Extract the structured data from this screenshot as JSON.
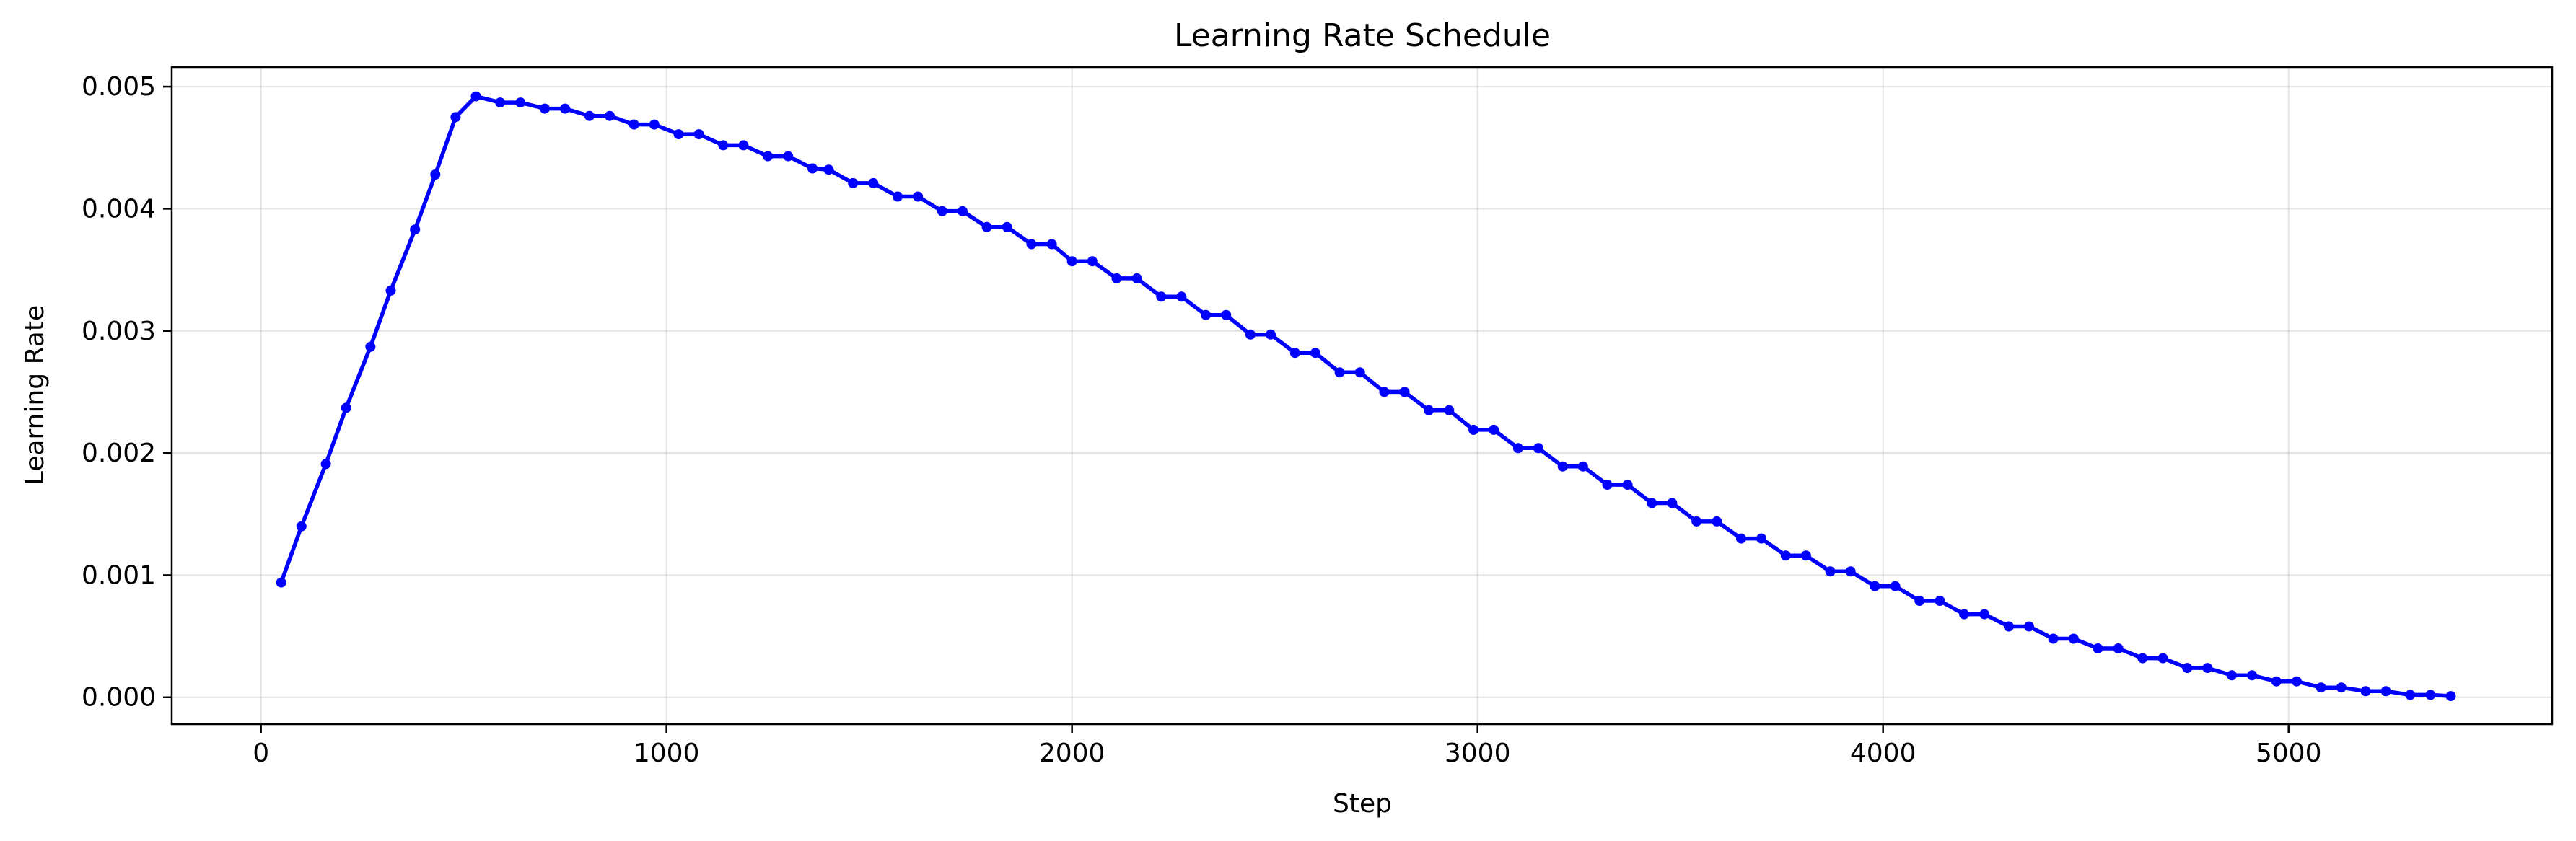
{
  "chart_data": {
    "type": "line",
    "title": "Learning Rate Schedule",
    "xlabel": "Step",
    "ylabel": "Learning Rate",
    "xlim": [
      -220,
      5650
    ],
    "ylim": [
      -0.00022,
      0.00516
    ],
    "xticks": [
      0,
      1000,
      2000,
      3000,
      4000,
      5000
    ],
    "xtick_labels": [
      "0",
      "1000",
      "2000",
      "3000",
      "4000",
      "5000"
    ],
    "yticks": [
      0,
      0.001,
      0.002,
      0.003,
      0.004,
      0.005
    ],
    "ytick_labels": [
      "0.000",
      "0.001",
      "0.002",
      "0.003",
      "0.004",
      "0.005"
    ],
    "grid": true,
    "color": "#0000ff",
    "series": [
      {
        "x": [
          50,
          100,
          160,
          210,
          270,
          320,
          380,
          430,
          480,
          530,
          590,
          640,
          700,
          750,
          810,
          860,
          920,
          970,
          1030,
          1080,
          1140,
          1190,
          1250,
          1300,
          1360,
          1400,
          1460,
          1510,
          1570,
          1620,
          1680,
          1730,
          1790,
          1840,
          1900,
          1950,
          2000,
          2050,
          2110,
          2160,
          2220,
          2270,
          2330,
          2380,
          2440,
          2490,
          2550,
          2600,
          2660,
          2710,
          2770,
          2820,
          2880,
          2930,
          2990,
          3040,
          3100,
          3150,
          3210,
          3260,
          3320,
          3370,
          3430,
          3480,
          3540,
          3590,
          3650,
          3700,
          3760,
          3810,
          3870,
          3920,
          3980,
          4030,
          4090,
          4140,
          4200,
          4250,
          4310,
          4360,
          4420,
          4470,
          4530,
          4580,
          4640,
          4690,
          4750,
          4800,
          4860,
          4910,
          4970,
          5020,
          5080,
          5130,
          5190,
          5240,
          5300,
          5350,
          5400
        ],
        "y": [
          0.00094,
          0.0014,
          0.00191,
          0.00237,
          0.00287,
          0.00333,
          0.00383,
          0.00428,
          0.00475,
          0.00492,
          0.00487,
          0.00487,
          0.00482,
          0.00482,
          0.00476,
          0.00476,
          0.00469,
          0.00469,
          0.00461,
          0.00461,
          0.00452,
          0.00452,
          0.00443,
          0.00443,
          0.00433,
          0.00432,
          0.00421,
          0.00421,
          0.0041,
          0.0041,
          0.00398,
          0.00398,
          0.00385,
          0.00385,
          0.00371,
          0.00371,
          0.00357,
          0.00357,
          0.00343,
          0.00343,
          0.00328,
          0.00328,
          0.00313,
          0.00313,
          0.00297,
          0.00297,
          0.00282,
          0.00282,
          0.00266,
          0.00266,
          0.0025,
          0.0025,
          0.00235,
          0.00235,
          0.00219,
          0.00219,
          0.00204,
          0.00204,
          0.00189,
          0.00189,
          0.00174,
          0.00174,
          0.00159,
          0.00159,
          0.00144,
          0.00144,
          0.0013,
          0.0013,
          0.00116,
          0.00116,
          0.00103,
          0.00103,
          0.00091,
          0.00091,
          0.00079,
          0.00079,
          0.00068,
          0.00068,
          0.00058,
          0.00058,
          0.00048,
          0.00048,
          0.0004,
          0.0004,
          0.00032,
          0.00032,
          0.00024,
          0.00024,
          0.00018,
          0.00018,
          0.00013,
          0.00013,
          8e-05,
          8e-05,
          5e-05,
          5e-05,
          2e-05,
          2e-05,
          1e-05
        ]
      }
    ]
  }
}
